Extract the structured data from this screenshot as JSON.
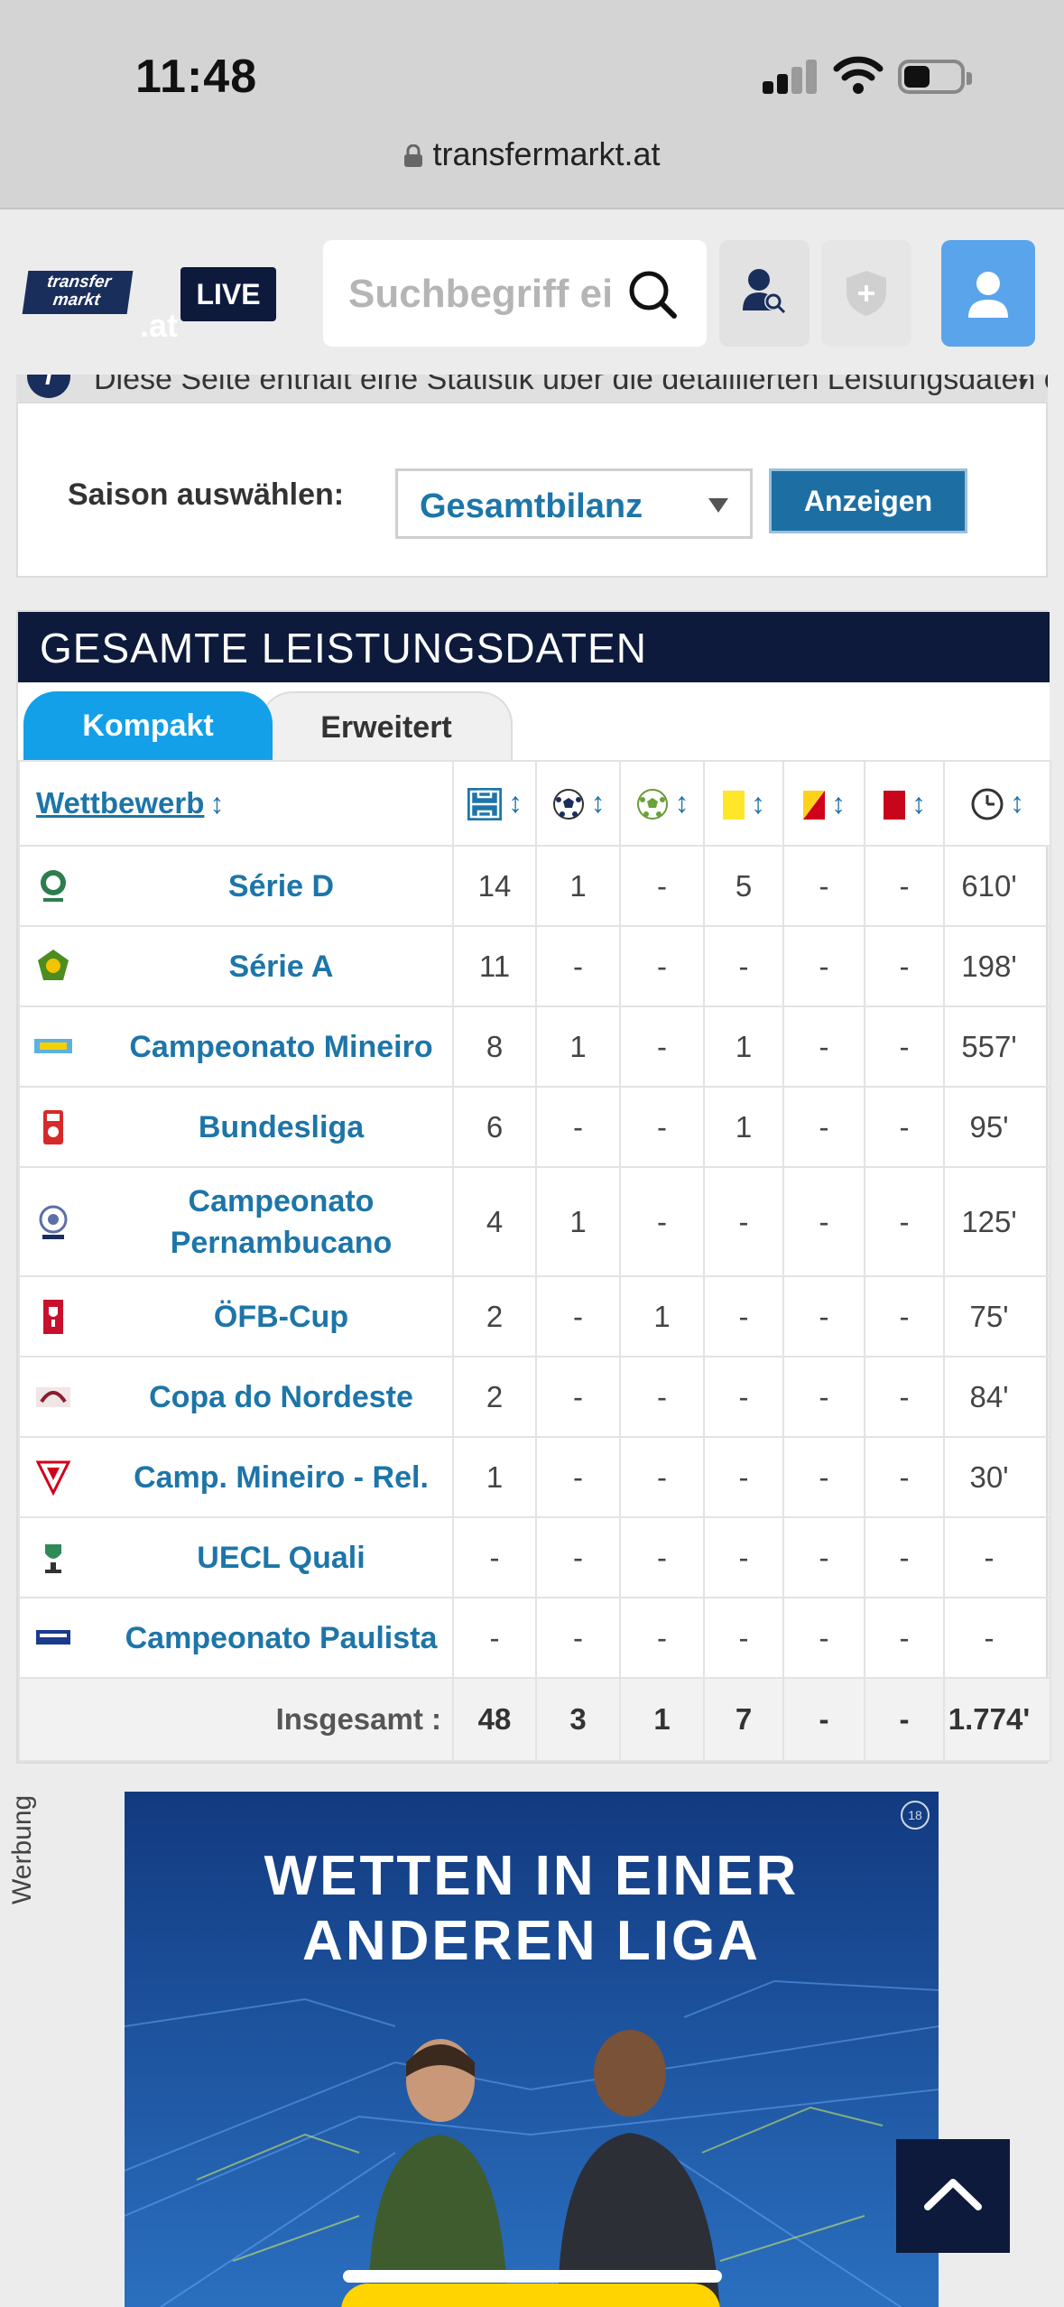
{
  "status_bar": {
    "time": "11:48"
  },
  "browser": {
    "url": "transfermarkt.at"
  },
  "header": {
    "logo_line1": "transfer",
    "logo_line2": "markt",
    "domain": ".at",
    "live_label": "LIVE",
    "search_placeholder": "Suchbegriff eingeben"
  },
  "info": {
    "text": "Diese Seite enthält eine Statistik über die detaillierten Leistungsdaten ei..."
  },
  "season": {
    "label": "Saison auswählen:",
    "selected": "Gesamtbilanz",
    "button": "Anzeigen"
  },
  "section": {
    "title": "GESAMTE LEISTUNGSDATEN",
    "tabs": [
      "Kompakt",
      "Erweitert"
    ],
    "column_competition": "Wettbewerb",
    "sort_glyph": "↕"
  },
  "rows": [
    {
      "competition": "Série D",
      "apps": "14",
      "goals": "1",
      "assists": "-",
      "yellow": "5",
      "yellowred": "-",
      "red": "-",
      "minutes": "610'"
    },
    {
      "competition": "Série A",
      "apps": "11",
      "goals": "-",
      "assists": "-",
      "yellow": "-",
      "yellowred": "-",
      "red": "-",
      "minutes": "198'"
    },
    {
      "competition": "Campeonato Mineiro",
      "apps": "8",
      "goals": "1",
      "assists": "-",
      "yellow": "1",
      "yellowred": "-",
      "red": "-",
      "minutes": "557'"
    },
    {
      "competition": "Bundesliga",
      "apps": "6",
      "goals": "-",
      "assists": "-",
      "yellow": "1",
      "yellowred": "-",
      "red": "-",
      "minutes": "95'"
    },
    {
      "competition_line1": "Campeonato",
      "competition_line2": "Pernambucano",
      "apps": "4",
      "goals": "1",
      "assists": "-",
      "yellow": "-",
      "yellowred": "-",
      "red": "-",
      "minutes": "125'"
    },
    {
      "competition": "ÖFB-Cup",
      "apps": "2",
      "goals": "-",
      "assists": "1",
      "yellow": "-",
      "yellowred": "-",
      "red": "-",
      "minutes": "75'"
    },
    {
      "competition": "Copa do Nordeste",
      "apps": "2",
      "goals": "-",
      "assists": "-",
      "yellow": "-",
      "yellowred": "-",
      "red": "-",
      "minutes": "84'"
    },
    {
      "competition": "Camp. Mineiro - Rel.",
      "apps": "1",
      "goals": "-",
      "assists": "-",
      "yellow": "-",
      "yellowred": "-",
      "red": "-",
      "minutes": "30'"
    },
    {
      "competition": "UECL Quali",
      "apps": "-",
      "goals": "-",
      "assists": "-",
      "yellow": "-",
      "yellowred": "-",
      "red": "-",
      "minutes": "-"
    },
    {
      "competition": "Campeonato Paulista",
      "apps": "-",
      "goals": "-",
      "assists": "-",
      "yellow": "-",
      "yellowred": "-",
      "red": "-",
      "minutes": "-"
    }
  ],
  "totals": {
    "label": "Insgesamt :",
    "apps": "48",
    "goals": "3",
    "assists": "1",
    "yellow": "7",
    "yellowred": "-",
    "red": "-",
    "minutes": "1.774'"
  },
  "ad": {
    "label": "Werbung",
    "headline_line1": "WETTEN IN EINER",
    "headline_line2": "ANDEREN LIGA",
    "age_badge": "18"
  },
  "colors": {
    "navy": "#0d1a3c",
    "link_blue": "#1d75a8",
    "tab_blue": "#13a0e8",
    "user_button": "#5aa4ec"
  },
  "icons": {
    "col_apps": "lineup-icon",
    "col_goals": "ball-icon",
    "col_assists": "assist-ball-icon",
    "col_yellow": "yellow-card-icon",
    "col_yellowred": "yellow-red-card-icon",
    "col_red": "red-card-icon",
    "col_minutes": "clock-icon"
  }
}
